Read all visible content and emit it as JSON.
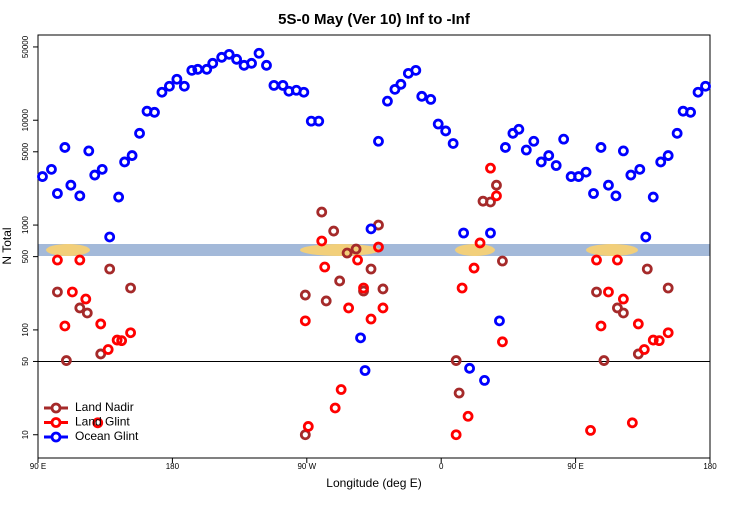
{
  "chart_data": {
    "type": "scatter",
    "title": "5S-0 May (Ver 10)   Inf to -Inf",
    "x_label": "Longitude (deg E)",
    "y_label": "N Total",
    "log_y": true,
    "xlim": [
      90,
      540
    ],
    "xticks": [
      {
        "value": 90,
        "label": "90 E"
      },
      {
        "value": 180,
        "label": "180"
      },
      {
        "value": 270,
        "label": "90 W"
      },
      {
        "value": 360,
        "label": "0"
      },
      {
        "value": 450,
        "label": "90 E"
      },
      {
        "value": 540,
        "label": "180"
      }
    ],
    "ylim": [
      6,
      65000
    ],
    "yticks": [
      10,
      50,
      100,
      500,
      1000,
      5000,
      10000,
      50000
    ],
    "hlines": [
      50
    ],
    "legend": "bottom-left",
    "series": [
      {
        "name": "Land Nadir",
        "color": "#a52a2a",
        "x": [
          103,
          109,
          118,
          123,
          132,
          138,
          152,
          269,
          269,
          280,
          283,
          288,
          292,
          297,
          303,
          308,
          313,
          318,
          321,
          370,
          372,
          388,
          393,
          397,
          401,
          464,
          469,
          478,
          482,
          492,
          498,
          512
        ],
        "values": [
          230,
          51,
          162,
          145,
          59,
          381,
          251,
          215,
          10,
          1330,
          189,
          877,
          293,
          541,
          591,
          235,
          381,
          1000,
          246,
          51,
          25,
          1690,
          1660,
          2400,
          454,
          230,
          51,
          162,
          145,
          59,
          381,
          251
        ]
      },
      {
        "name": "Land Glint",
        "color": "#ff0000",
        "x": [
          103,
          108,
          113,
          118,
          122,
          130,
          132,
          137,
          143,
          146,
          152,
          269,
          271,
          280,
          282,
          289,
          293,
          298,
          304,
          308,
          313,
          318,
          321,
          370,
          374,
          378,
          382,
          386,
          393,
          397,
          401,
          460,
          464,
          467,
          472,
          478,
          482,
          488,
          492,
          496,
          502,
          506,
          512
        ],
        "values": [
          464,
          109,
          230,
          464,
          197,
          13,
          114,
          65,
          80,
          79,
          94,
          122,
          12,
          705,
          398,
          18,
          27,
          162,
          464,
          251,
          127,
          617,
          162,
          10,
          251,
          15,
          389,
          675,
          3490,
          1900,
          77,
          11,
          464,
          109,
          230,
          464,
          197,
          13,
          114,
          65,
          80,
          79,
          94
        ]
      },
      {
        "name": "Ocean Glint",
        "color": "#0000ff",
        "x": [
          93,
          99,
          103,
          108,
          112,
          118,
          124,
          128,
          133,
          138,
          144,
          148,
          153,
          158,
          163,
          168,
          173,
          178,
          183,
          188,
          193,
          197,
          203,
          207,
          213,
          218,
          223,
          228,
          233,
          238,
          243,
          248,
          254,
          258,
          263,
          268,
          273,
          278,
          306,
          309,
          313,
          318,
          324,
          329,
          333,
          338,
          343,
          347,
          353,
          358,
          363,
          368,
          375,
          379,
          389,
          393,
          399,
          403,
          408,
          412,
          417,
          422,
          427,
          432,
          437,
          442,
          447,
          452,
          457,
          462,
          467,
          472,
          477,
          482,
          487,
          493,
          497,
          502,
          507,
          512,
          518,
          522,
          527,
          532,
          537
        ],
        "values": [
          2900,
          3400,
          2000,
          5500,
          2400,
          1900,
          5100,
          3000,
          3400,
          770,
          1850,
          4000,
          4600,
          7500,
          12200,
          11900,
          18500,
          21100,
          24600,
          21100,
          29900,
          30600,
          30600,
          34900,
          39800,
          42500,
          38100,
          33400,
          34900,
          43500,
          33400,
          21500,
          21500,
          18900,
          19300,
          18500,
          9800,
          9800,
          84,
          41,
          920,
          6300,
          15200,
          19700,
          22000,
          28000,
          29900,
          16900,
          15800,
          9200,
          7900,
          6000,
          840,
          43,
          33,
          840,
          122,
          5500,
          7500,
          8200,
          5200,
          6300,
          4000,
          4600,
          3700,
          6600,
          2900,
          2900,
          3200,
          2000,
          5500,
          2400,
          1900,
          5100,
          3000,
          3400,
          770,
          1850,
          4000,
          4600,
          7500,
          12200,
          11900,
          18500,
          21100
        ]
      }
    ]
  }
}
